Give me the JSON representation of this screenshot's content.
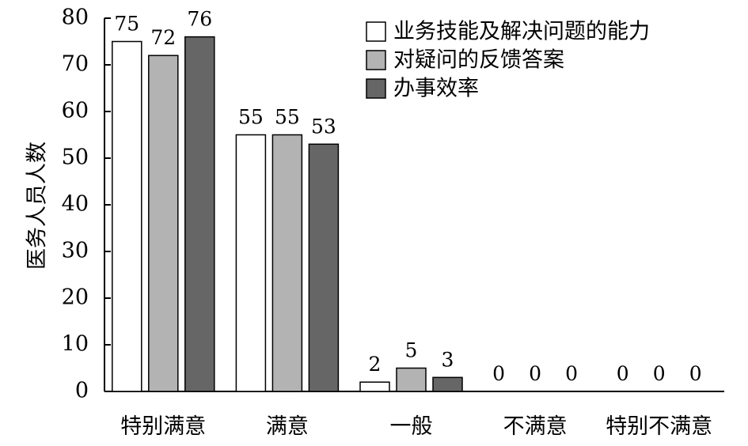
{
  "chart_data": {
    "type": "bar",
    "categories": [
      "特别满意",
      "满意",
      "一般",
      "不满意",
      "特别不满意"
    ],
    "series": [
      {
        "name": "业务技能及解决问题的能力",
        "values": [
          75,
          55,
          2,
          0,
          0
        ],
        "color": "#ffffff"
      },
      {
        "name": "对疑问的反馈答案",
        "values": [
          72,
          55,
          5,
          0,
          0
        ],
        "color": "#b3b3b3"
      },
      {
        "name": "办事效率",
        "values": [
          76,
          53,
          3,
          0,
          0
        ],
        "color": "#666666"
      }
    ],
    "title": "",
    "xlabel": "",
    "ylabel": "医务人员人数",
    "ylim": [
      0,
      80
    ],
    "yticks": [
      0,
      10,
      20,
      30,
      40,
      50,
      60,
      70,
      80
    ],
    "grid": false,
    "legend_position": "top-right",
    "data_labels": true
  }
}
